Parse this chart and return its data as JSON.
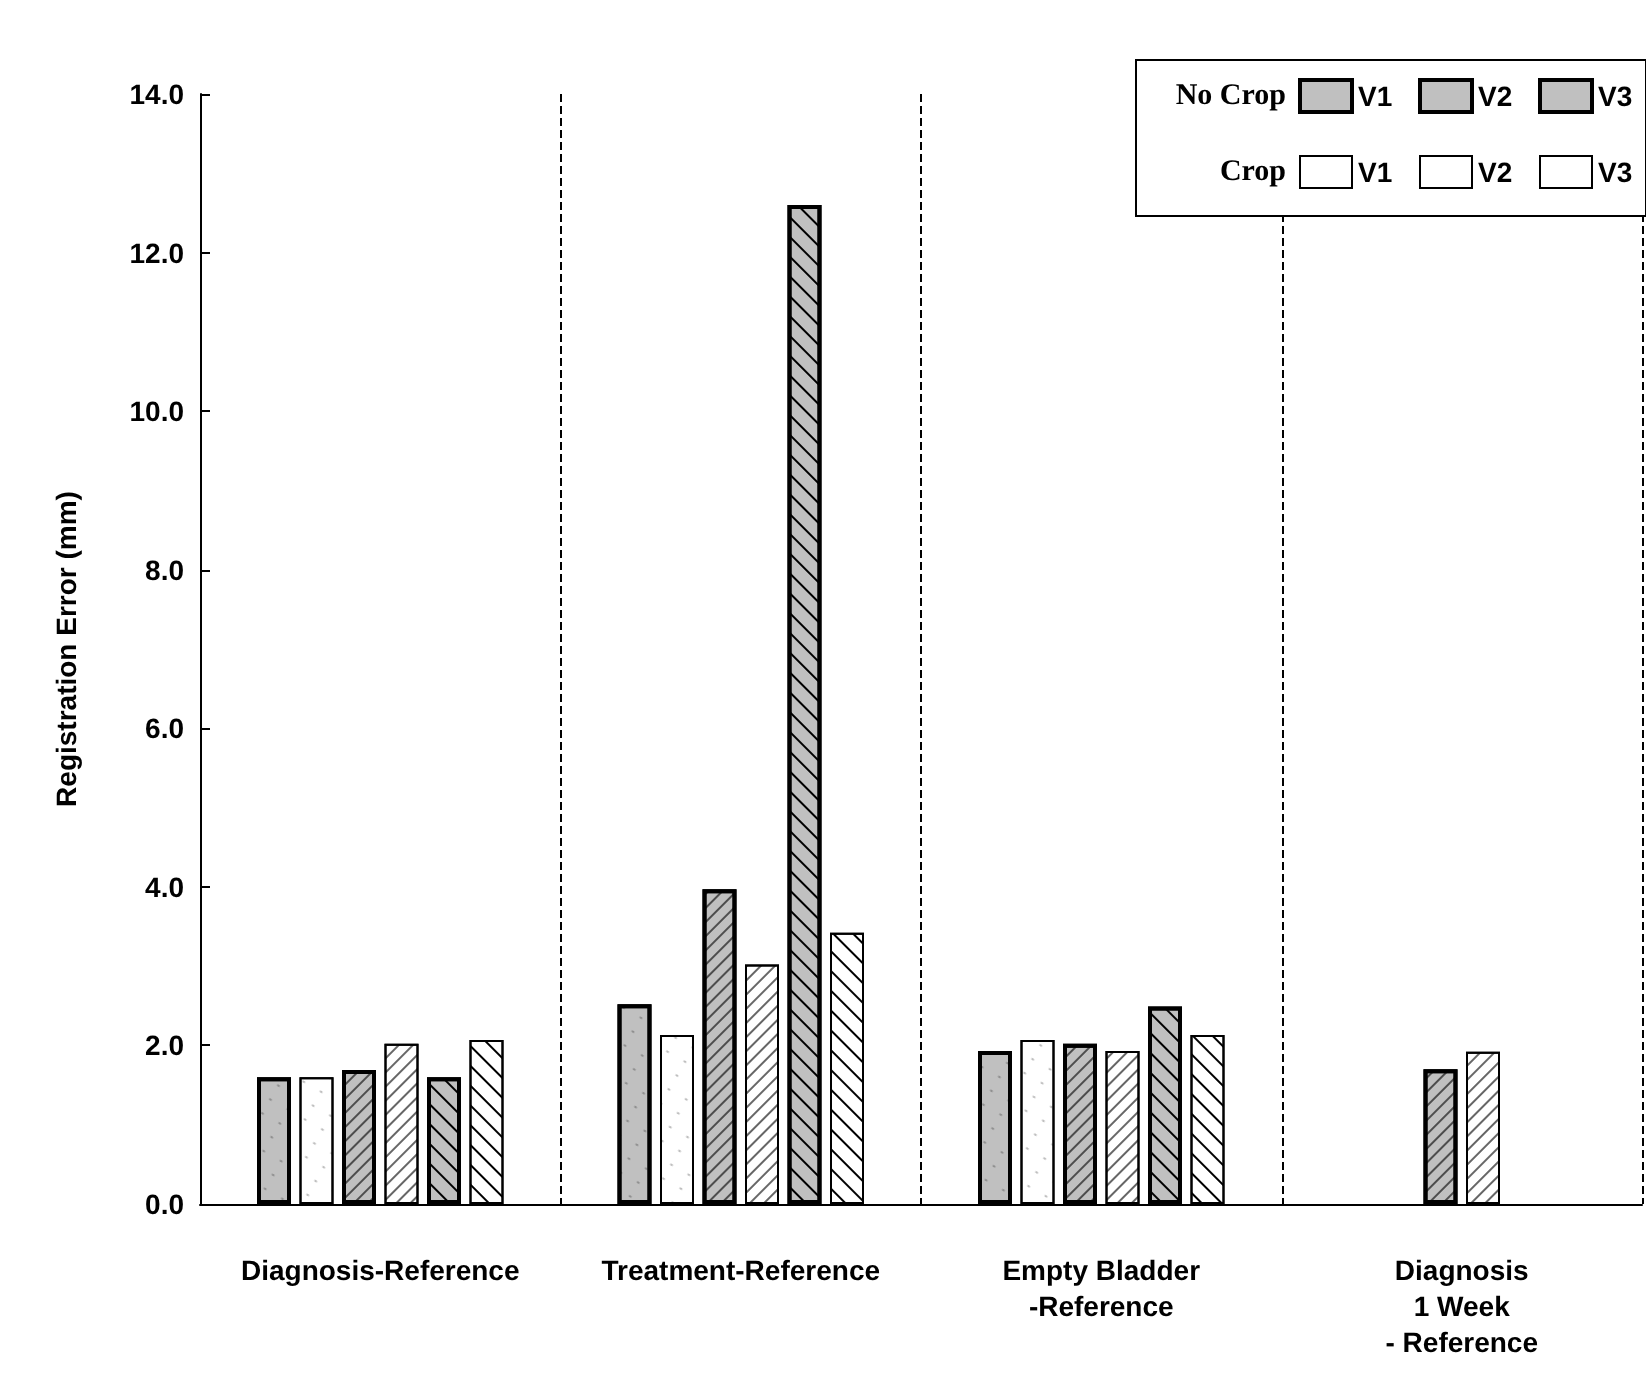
{
  "chart_data": {
    "type": "bar",
    "ylabel": "Registration Error (mm)",
    "categories": [
      "Diagnosis-Reference",
      "Treatment-Reference",
      "Empty Bladder\n-Reference",
      "Diagnosis\n1 Week\n- Reference"
    ],
    "series": [
      {
        "name": "V1",
        "color": "#c0c0c0",
        "values": [
          1.6,
          2.52,
          1.93,
          null
        ]
      },
      {
        "name": "V1",
        "color": "#ffffff",
        "values": [
          1.6,
          2.13,
          2.07,
          null
        ]
      },
      {
        "name": "V2",
        "color": "#c0c0c0",
        "values": [
          1.69,
          3.97,
          2.02,
          1.7
        ]
      },
      {
        "name": "V2",
        "color": "#ffffff",
        "values": [
          2.02,
          3.02,
          1.93,
          1.92
        ]
      },
      {
        "name": "V3",
        "color": "#c0c0c0",
        "values": [
          1.6,
          12.6,
          2.49,
          null
        ]
      },
      {
        "name": "V3",
        "color": "#ffffff",
        "values": [
          2.07,
          3.42,
          2.13,
          null
        ]
      }
    ],
    "annotations": [
      "No Crop",
      "Crop"
    ],
    "ylim": [
      0,
      14
    ],
    "yticks": [
      {
        "value": 0,
        "label": "0.0"
      },
      {
        "value": 2,
        "label": "2.0"
      },
      {
        "value": 4,
        "label": "4.0"
      },
      {
        "value": 6,
        "label": "6.0"
      },
      {
        "value": 8,
        "label": "8.0"
      },
      {
        "value": 10,
        "label": "10.0"
      },
      {
        "value": 12,
        "label": "12.0"
      },
      {
        "value": 14,
        "label": "14.0"
      }
    ],
    "grid": "x",
    "legend": "top right"
  }
}
